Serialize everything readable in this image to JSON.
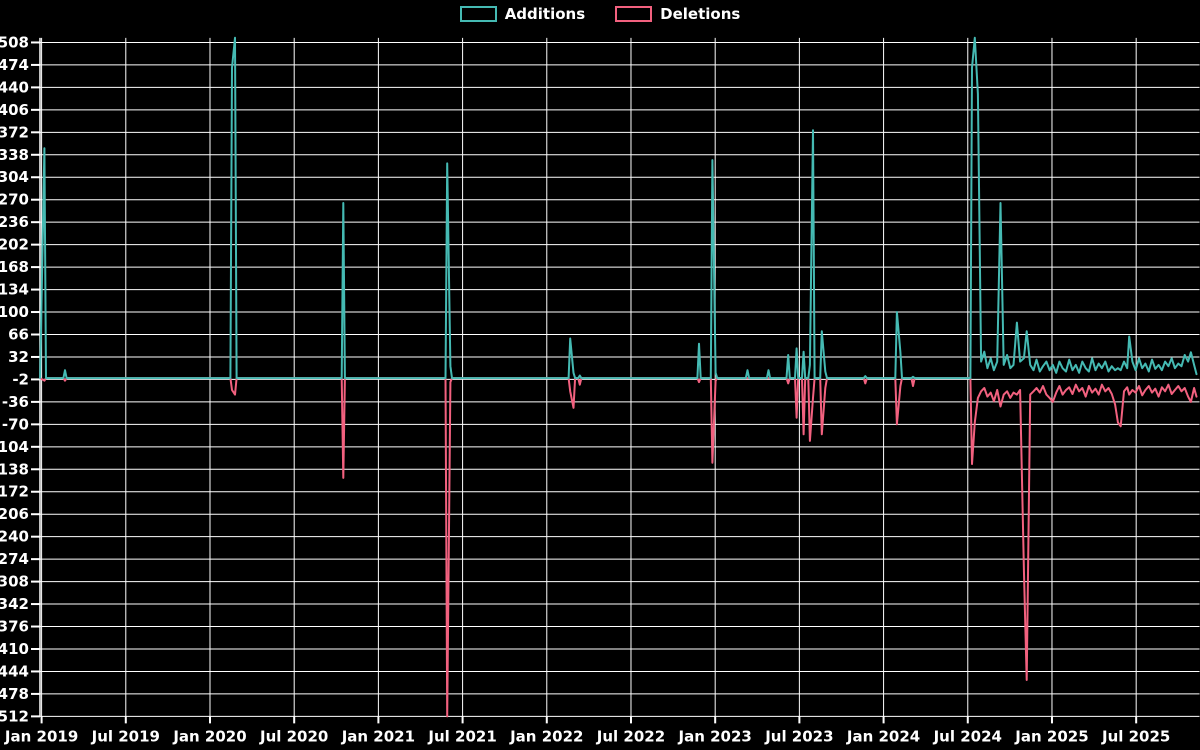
{
  "legend": {
    "items": [
      {
        "label": "Additions",
        "color": "#45bab3"
      },
      {
        "label": "Deletions",
        "color": "#f2617f"
      }
    ]
  },
  "axes": {
    "y_tick_labels": [
      "508",
      "474",
      "440",
      "406",
      "372",
      "338",
      "304",
      "270",
      "236",
      "202",
      "168",
      "134",
      "100",
      "66",
      "32",
      "-2",
      "-36",
      "-70",
      "-104",
      "-138",
      "-172",
      "-206",
      "-240",
      "-274",
      "-308",
      "-342",
      "-376",
      "-410",
      "-444",
      "-478",
      "-512"
    ],
    "x_tick_labels": [
      "Jan 2019",
      "Jul 2019",
      "Jan 2020",
      "Jul 2020",
      "Jan 2021",
      "Jul 2021",
      "Jan 2022",
      "Jul 2022",
      "Jan 2023",
      "Jul 2023",
      "Jan 2024",
      "Jul 2024",
      "Jan 2025",
      "Jul 2025"
    ]
  },
  "chart_data": {
    "type": "line",
    "title": "",
    "xlabel": "",
    "ylabel": "",
    "grid": true,
    "legend_position": "top-center",
    "background": "#000000",
    "grid_color": "#ffffff",
    "text_color": "#ffffff",
    "ylim": [
      -512,
      508
    ],
    "y_tick_step": 34,
    "xlim_months": [
      -0.11,
      82.3
    ],
    "baseline": 0,
    "x_unit": "months since Jan 2019 (weekly commit data)",
    "series": [
      {
        "name": "Additions",
        "color": "#45bab3"
      },
      {
        "name": "Deletions",
        "color": "#f2617f"
      }
    ],
    "points_format": [
      "months_since_jan2019",
      "additions",
      "deletions"
    ],
    "points": [
      [
        -0.11,
        0,
        0
      ],
      [
        0.2,
        348,
        -4
      ],
      [
        1.67,
        12,
        -4
      ],
      [
        13.57,
        470,
        -18
      ],
      [
        13.78,
        515,
        -25
      ],
      [
        21.5,
        265,
        -151
      ],
      [
        28.9,
        325,
        -512
      ],
      [
        29.13,
        18,
        -6
      ],
      [
        37.67,
        60,
        -20
      ],
      [
        37.9,
        8,
        -45
      ],
      [
        38.35,
        4,
        -10
      ],
      [
        46.85,
        52,
        -6
      ],
      [
        47.8,
        330,
        -128
      ],
      [
        48.03,
        8,
        -4
      ],
      [
        50.3,
        12,
        0
      ],
      [
        51.8,
        12,
        0
      ],
      [
        53.2,
        35,
        -8
      ],
      [
        53.8,
        45,
        -60
      ],
      [
        54.3,
        40,
        -85
      ],
      [
        54.75,
        20,
        -95
      ],
      [
        54.97,
        375,
        -30
      ],
      [
        55.6,
        71,
        -85
      ],
      [
        55.85,
        10,
        -15
      ],
      [
        58.7,
        3,
        -8
      ],
      [
        60.95,
        100,
        -70
      ],
      [
        61.2,
        39,
        -12
      ],
      [
        62.1,
        2,
        -12
      ],
      [
        66.3,
        470,
        -130
      ],
      [
        66.5,
        520,
        -67
      ],
      [
        66.72,
        430,
        -30
      ],
      [
        66.95,
        25,
        -20
      ],
      [
        67.18,
        40,
        -15
      ],
      [
        67.4,
        15,
        -28
      ],
      [
        67.63,
        30,
        -22
      ],
      [
        67.86,
        12,
        -35
      ],
      [
        68.1,
        25,
        -18
      ],
      [
        68.33,
        265,
        -43
      ],
      [
        68.56,
        20,
        -25
      ],
      [
        68.8,
        35,
        -20
      ],
      [
        69.03,
        15,
        -30
      ],
      [
        69.26,
        20,
        -22
      ],
      [
        69.5,
        84,
        -25
      ],
      [
        69.73,
        25,
        -18
      ],
      [
        70.0,
        30,
        -290
      ],
      [
        70.2,
        71,
        -457
      ],
      [
        70.45,
        20,
        -25
      ],
      [
        70.68,
        12,
        -20
      ],
      [
        70.9,
        28,
        -15
      ],
      [
        71.13,
        10,
        -22
      ],
      [
        71.36,
        18,
        -12
      ],
      [
        71.6,
        25,
        -25
      ],
      [
        71.83,
        12,
        -30
      ],
      [
        72.06,
        20,
        -36
      ],
      [
        72.3,
        8,
        -22
      ],
      [
        72.53,
        25,
        -12
      ],
      [
        72.76,
        15,
        -25
      ],
      [
        73.0,
        10,
        -18
      ],
      [
        73.23,
        28,
        -14
      ],
      [
        73.46,
        12,
        -24
      ],
      [
        73.7,
        20,
        -10
      ],
      [
        73.93,
        8,
        -20
      ],
      [
        74.16,
        25,
        -15
      ],
      [
        74.4,
        15,
        -28
      ],
      [
        74.63,
        10,
        -12
      ],
      [
        74.86,
        30,
        -22
      ],
      [
        75.1,
        12,
        -16
      ],
      [
        75.33,
        22,
        -25
      ],
      [
        75.56,
        15,
        -10
      ],
      [
        75.8,
        25,
        -20
      ],
      [
        76.03,
        10,
        -15
      ],
      [
        76.26,
        18,
        -24
      ],
      [
        76.5,
        12,
        -40
      ],
      [
        76.7,
        15,
        -67
      ],
      [
        76.9,
        12,
        -73
      ],
      [
        77.13,
        25,
        -20
      ],
      [
        77.36,
        15,
        -14
      ],
      [
        77.5,
        63,
        -25
      ],
      [
        77.73,
        25,
        -18
      ],
      [
        77.96,
        12,
        -22
      ],
      [
        78.2,
        30,
        -12
      ],
      [
        78.43,
        15,
        -26
      ],
      [
        78.66,
        22,
        -18
      ],
      [
        78.9,
        10,
        -12
      ],
      [
        79.13,
        28,
        -22
      ],
      [
        79.36,
        14,
        -16
      ],
      [
        79.6,
        20,
        -28
      ],
      [
        79.83,
        12,
        -14
      ],
      [
        80.06,
        25,
        -20
      ],
      [
        80.3,
        18,
        -10
      ],
      [
        80.53,
        30,
        -24
      ],
      [
        80.76,
        15,
        -18
      ],
      [
        81.0,
        22,
        -12
      ],
      [
        81.23,
        18,
        -20
      ],
      [
        81.46,
        35,
        -15
      ],
      [
        81.7,
        25,
        -28
      ],
      [
        81.9,
        39,
        -36
      ],
      [
        82.13,
        20,
        -15
      ],
      [
        82.3,
        6,
        -28
      ]
    ]
  }
}
